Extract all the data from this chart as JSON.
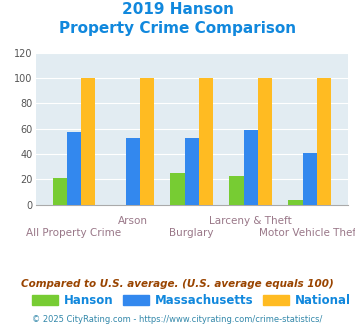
{
  "title_line1": "2019 Hanson",
  "title_line2": "Property Crime Comparison",
  "categories": [
    "All Property Crime",
    "Arson",
    "Burglary",
    "Larceny & Theft",
    "Motor Vehicle Theft"
  ],
  "hanson": [
    21,
    0,
    25,
    23,
    4
  ],
  "massachusetts": [
    57,
    53,
    53,
    59,
    41
  ],
  "national": [
    100,
    100,
    100,
    100,
    100
  ],
  "colors": {
    "hanson": "#77cc33",
    "massachusetts": "#3388ee",
    "national": "#ffbb22"
  },
  "ylim": [
    0,
    120
  ],
  "yticks": [
    0,
    20,
    40,
    60,
    80,
    100,
    120
  ],
  "legend_labels": [
    "Hanson",
    "Massachusetts",
    "National"
  ],
  "footnote1": "Compared to U.S. average. (U.S. average equals 100)",
  "footnote2": "© 2025 CityRating.com - https://www.cityrating.com/crime-statistics/",
  "bg_color": "#ffffff",
  "plot_bg": "#e2ecf2",
  "title_color": "#1188dd",
  "xtick_color": "#997788",
  "footnote1_color": "#994400",
  "footnote2_color": "#3388aa"
}
